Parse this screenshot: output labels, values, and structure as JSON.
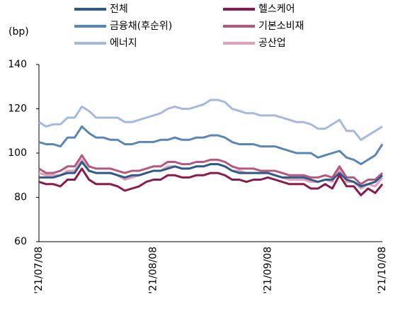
{
  "chart_data": {
    "type": "line",
    "y_axis_label": "(bp)",
    "categories": [
      "'21/07/08",
      null,
      null,
      null,
      null,
      null,
      null,
      null,
      null,
      null,
      null,
      null,
      null,
      null,
      null,
      null,
      "'21/08/08",
      null,
      null,
      null,
      null,
      null,
      null,
      null,
      null,
      null,
      null,
      null,
      null,
      null,
      null,
      null,
      "'21/09/08",
      null,
      null,
      null,
      null,
      null,
      null,
      null,
      null,
      null,
      null,
      null,
      null,
      null,
      null,
      null,
      "'21/10/08"
    ],
    "series": [
      {
        "name": "전체",
        "color": "#2e5c8a",
        "values": [
          89,
          89,
          89,
          90,
          91,
          91,
          96,
          92,
          91,
          91,
          91,
          90,
          89,
          90,
          90,
          91,
          92,
          92,
          93,
          94,
          93,
          93,
          94,
          94,
          95,
          95,
          94,
          92,
          91,
          91,
          91,
          91,
          91,
          90,
          89,
          89,
          89,
          89,
          88,
          87,
          88,
          88,
          91,
          88,
          87,
          85,
          86,
          87,
          90
        ]
      },
      {
        "name": "헬스케어",
        "color": "#8b1a4f",
        "values": [
          87,
          86,
          86,
          85,
          88,
          88,
          93,
          88,
          86,
          86,
          86,
          85,
          83,
          84,
          85,
          87,
          88,
          88,
          90,
          90,
          89,
          89,
          90,
          90,
          91,
          91,
          90,
          88,
          88,
          87,
          88,
          88,
          89,
          88,
          87,
          86,
          86,
          86,
          84,
          84,
          86,
          84,
          90,
          85,
          85,
          81,
          84,
          82,
          86
        ]
      },
      {
        "name": "금융채(후순위)",
        "color": "#5a86b5",
        "values": [
          105,
          104,
          104,
          103,
          107,
          107,
          112,
          109,
          107,
          107,
          106,
          106,
          104,
          104,
          105,
          105,
          105,
          106,
          106,
          107,
          106,
          106,
          107,
          107,
          108,
          108,
          107,
          105,
          104,
          104,
          104,
          103,
          103,
          103,
          102,
          101,
          100,
          100,
          100,
          98,
          99,
          100,
          101,
          98,
          97,
          95,
          97,
          99,
          104
        ]
      },
      {
        "name": "기본소비재",
        "color": "#b5577e",
        "values": [
          93,
          91,
          91,
          92,
          94,
          94,
          99,
          94,
          93,
          93,
          93,
          92,
          91,
          92,
          92,
          93,
          94,
          94,
          96,
          96,
          95,
          95,
          96,
          96,
          97,
          97,
          96,
          94,
          93,
          93,
          93,
          92,
          92,
          92,
          91,
          90,
          90,
          90,
          89,
          89,
          90,
          89,
          94,
          89,
          89,
          86,
          88,
          88,
          91
        ]
      },
      {
        "name": "에너지",
        "color": "#a3b9de",
        "values": [
          114,
          112,
          113,
          113,
          116,
          116,
          121,
          119,
          116,
          116,
          116,
          116,
          114,
          114,
          115,
          116,
          117,
          118,
          120,
          121,
          120,
          120,
          121,
          122,
          124,
          124,
          123,
          120,
          119,
          118,
          118,
          117,
          117,
          117,
          116,
          115,
          114,
          114,
          113,
          111,
          111,
          113,
          115,
          110,
          110,
          106,
          108,
          110,
          112
        ]
      },
      {
        "name": "공산업",
        "color": "#e0a0bb",
        "values": [
          91,
          90,
          90,
          90,
          92,
          92,
          97,
          92,
          91,
          91,
          91,
          90,
          88,
          89,
          90,
          91,
          92,
          92,
          94,
          94,
          93,
          93,
          94,
          94,
          95,
          95,
          94,
          92,
          92,
          91,
          91,
          91,
          91,
          90,
          89,
          88,
          88,
          88,
          87,
          87,
          88,
          87,
          93,
          87,
          87,
          84,
          86,
          85,
          89
        ]
      }
    ],
    "ylim": [
      60,
      140
    ],
    "yticks": [
      60,
      80,
      100,
      120,
      140
    ],
    "grid": false
  }
}
